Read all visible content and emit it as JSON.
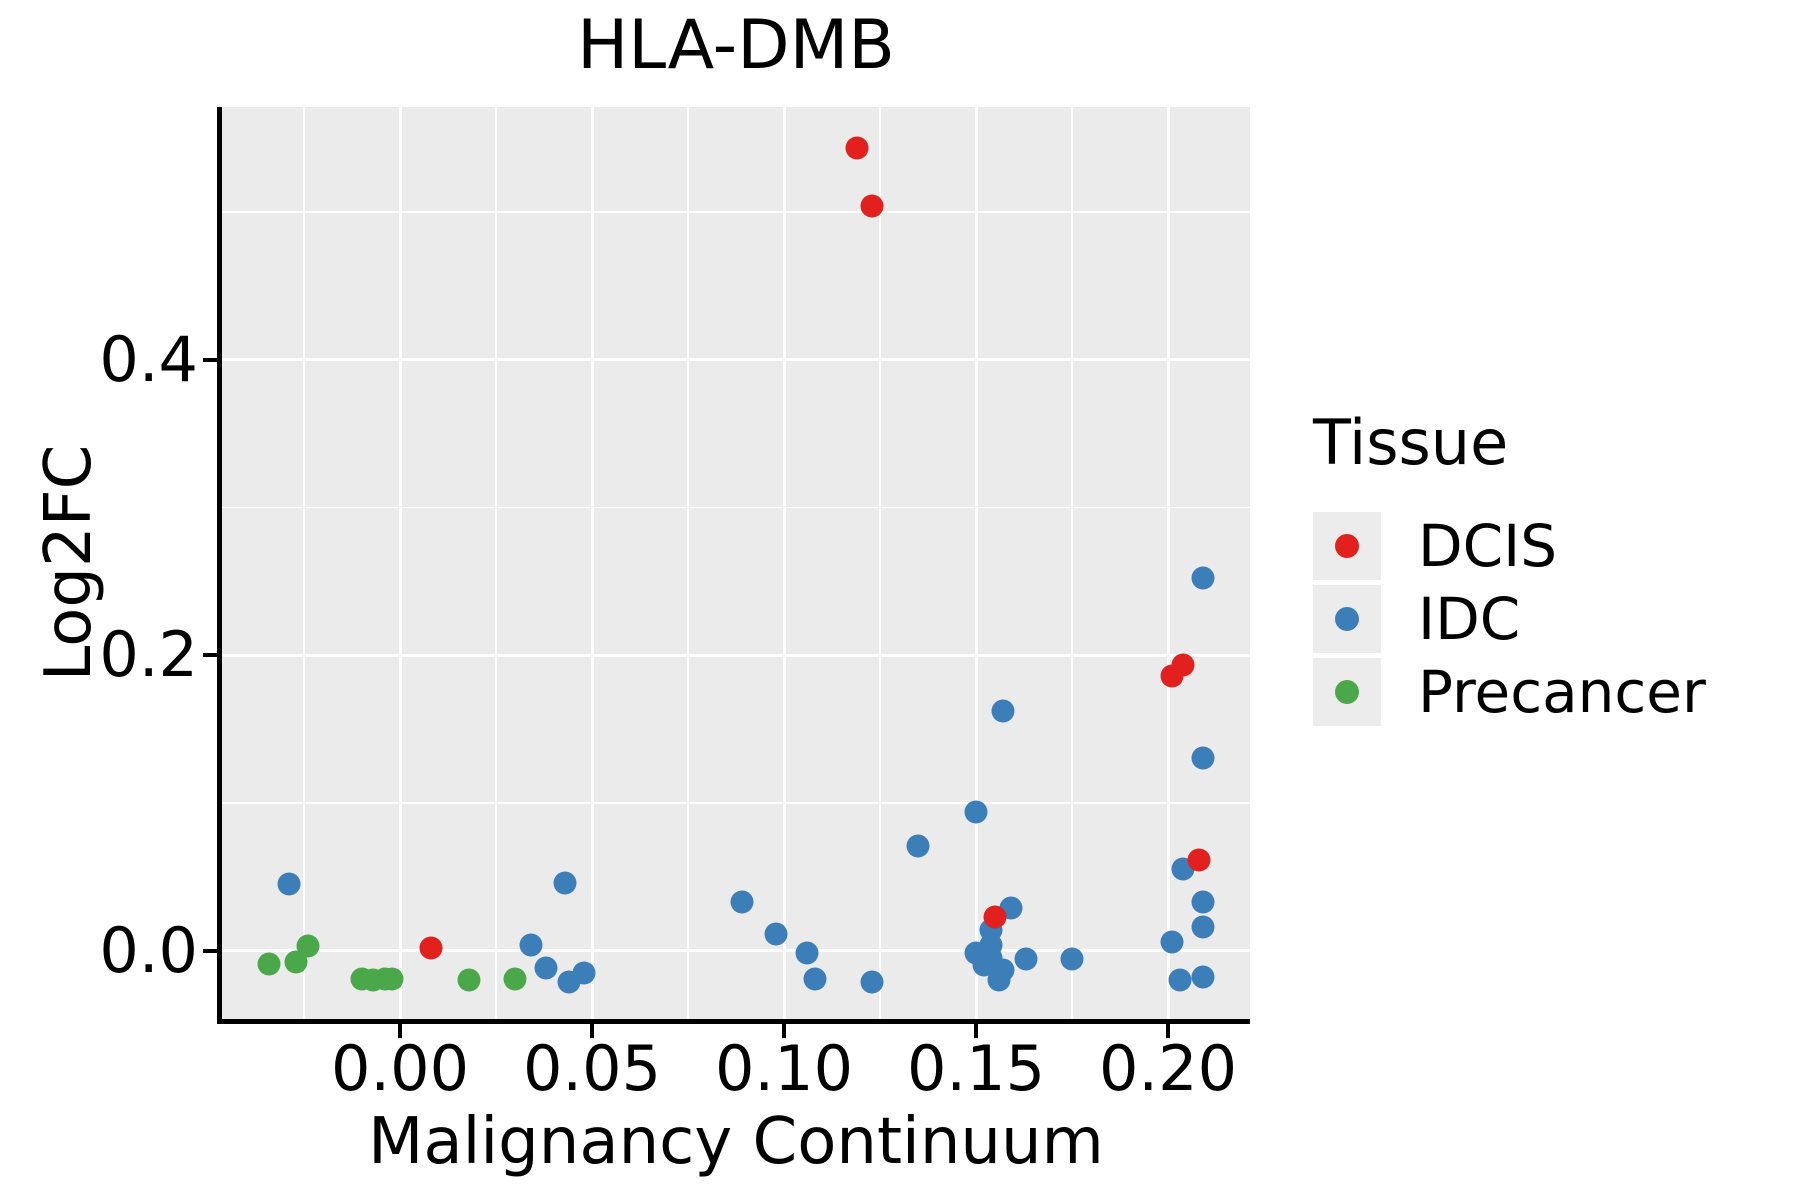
{
  "title": "HLA-DMB",
  "x_axis": {
    "label": "Malignancy Continuum",
    "tick_labels": [
      "0.00",
      "0.05",
      "0.10",
      "0.15",
      "0.20"
    ],
    "tick_values": [
      0.0,
      0.05,
      0.1,
      0.15,
      0.2
    ],
    "minor_tick_values": [
      -0.025,
      0.025,
      0.075,
      0.125,
      0.175
    ],
    "range": [
      -0.0464,
      0.2214
    ]
  },
  "y_axis": {
    "label": "Log2FC",
    "tick_labels": [
      "0.0",
      "0.2",
      "0.4"
    ],
    "tick_values": [
      0.0,
      0.2,
      0.4
    ],
    "minor_tick_values": [
      0.1,
      0.3,
      0.5
    ],
    "range": [
      -0.0464,
      0.5714
    ]
  },
  "legend": {
    "title": "Tissue",
    "entries": [
      {
        "label": "DCIS",
        "color": "#E2201D"
      },
      {
        "label": "IDC",
        "color": "#3C7EB8"
      },
      {
        "label": "Precancer",
        "color": "#4BA84A"
      }
    ]
  },
  "colors": {
    "panel_background": "#EBEBEB",
    "gridline": "#FFFFFF",
    "axis": "#000000",
    "legend_key_background": "#ECECEC"
  },
  "chart_data": {
    "type": "scatter",
    "title": "HLA-DMB",
    "xlabel": "Malignancy Continuum",
    "ylabel": "Log2FC",
    "xlim": [
      -0.046,
      0.221
    ],
    "ylim": [
      -0.046,
      0.571
    ],
    "grid": true,
    "legend_position": "right",
    "series": [
      {
        "name": "IDC",
        "color": "#3C7EB8",
        "points": [
          [
            -0.029,
            0.045
          ],
          [
            0.034,
            0.004
          ],
          [
            0.038,
            -0.012
          ],
          [
            0.043,
            0.046
          ],
          [
            0.044,
            -0.021
          ],
          [
            0.048,
            -0.015
          ],
          [
            0.089,
            0.033
          ],
          [
            0.098,
            0.011
          ],
          [
            0.106,
            -0.002
          ],
          [
            0.108,
            -0.019
          ],
          [
            0.123,
            -0.021
          ],
          [
            0.135,
            0.071
          ],
          [
            0.15,
            0.094
          ],
          [
            0.15,
            -0.002
          ],
          [
            0.152,
            -0.01
          ],
          [
            0.154,
            0.004
          ],
          [
            0.154,
            -0.005
          ],
          [
            0.154,
            0.014
          ],
          [
            0.156,
            -0.02
          ],
          [
            0.157,
            -0.013
          ],
          [
            0.157,
            0.162
          ],
          [
            0.159,
            0.029
          ],
          [
            0.163,
            -0.006
          ],
          [
            0.175,
            -0.006
          ],
          [
            0.201,
            0.006
          ],
          [
            0.203,
            -0.02
          ],
          [
            0.204,
            0.055
          ],
          [
            0.209,
            -0.018
          ],
          [
            0.209,
            0.016
          ],
          [
            0.209,
            0.033
          ],
          [
            0.209,
            0.13
          ],
          [
            0.209,
            0.252
          ]
        ]
      },
      {
        "name": "Precancer",
        "color": "#4BA84A",
        "points": [
          [
            -0.034,
            -0.009
          ],
          [
            -0.027,
            -0.008
          ],
          [
            -0.024,
            0.003
          ],
          [
            -0.01,
            -0.019
          ],
          [
            -0.007,
            -0.02
          ],
          [
            -0.004,
            -0.019
          ],
          [
            -0.002,
            -0.019
          ],
          [
            0.018,
            -0.02
          ],
          [
            0.03,
            -0.019
          ]
        ]
      },
      {
        "name": "DCIS",
        "color": "#E2201D",
        "points": [
          [
            0.008,
            0.002
          ],
          [
            0.119,
            0.543
          ],
          [
            0.123,
            0.504
          ],
          [
            0.155,
            0.023
          ],
          [
            0.201,
            0.186
          ],
          [
            0.204,
            0.193
          ],
          [
            0.208,
            0.061
          ]
        ]
      }
    ]
  }
}
